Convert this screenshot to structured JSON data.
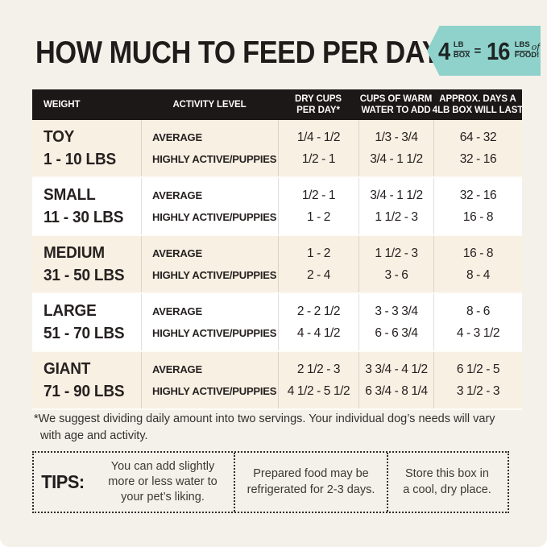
{
  "page": {
    "background": "#f4f1ea",
    "accent_teal": "#8ed2cb",
    "header_black": "#1c1817",
    "row_cream": "#f8f0e3"
  },
  "title": "HOW MUCH TO FEED PER DAY",
  "badge": {
    "qty_box": "4",
    "lb": "LB",
    "box": "BOX",
    "equals": "=",
    "qty_lbs": "16",
    "lbs": "LBS",
    "of": "of",
    "food": "FOOD!"
  },
  "table": {
    "headers": [
      {
        "line1": "WEIGHT"
      },
      {
        "line1": "ACTIVITY LEVEL"
      },
      {
        "line1": "DRY CUPS",
        "line2": "PER DAY*"
      },
      {
        "line1": "CUPS OF WARM",
        "line2": "WATER TO ADD"
      },
      {
        "line1": "APPROX. DAYS A",
        "line2": "4LB BOX WILL LAST"
      }
    ],
    "activity_labels": {
      "average": "AVERAGE",
      "active": "HIGHLY ACTIVE/PUPPIES"
    },
    "rows": [
      {
        "size": "TOY",
        "range": "1 - 10 LBS",
        "average": {
          "dry": "1/4 - 1/2",
          "water": "1/3 - 3/4",
          "days": "64 - 32"
        },
        "active": {
          "dry": "1/2 - 1",
          "water": "3/4 - 1 1/2",
          "days": "32 - 16"
        }
      },
      {
        "size": "SMALL",
        "range": "11 - 30 LBS",
        "average": {
          "dry": "1/2 - 1",
          "water": "3/4 - 1 1/2",
          "days": "32 - 16"
        },
        "active": {
          "dry": "1 - 2",
          "water": "1 1/2 - 3",
          "days": "16 - 8"
        }
      },
      {
        "size": "MEDIUM",
        "range": "31 - 50 LBS",
        "average": {
          "dry": "1 - 2",
          "water": "1 1/2 - 3",
          "days": "16 - 8"
        },
        "active": {
          "dry": "2 - 4",
          "water": "3 - 6",
          "days": "8 - 4"
        }
      },
      {
        "size": "LARGE",
        "range": "51 - 70 LBS",
        "average": {
          "dry": "2 - 2 1/2",
          "water": "3 - 3 3/4",
          "days": "8 - 6"
        },
        "active": {
          "dry": "4 - 4 1/2",
          "water": "6 - 6 3/4",
          "days": "4 - 3 1/2"
        }
      },
      {
        "size": "GIANT",
        "range": "71 - 90 LBS",
        "average": {
          "dry": "2 1/2 - 3",
          "water": "3 3/4 - 4 1/2",
          "days": "6 1/2 - 5"
        },
        "active": {
          "dry": "4 1/2 - 5 1/2",
          "water": "6 3/4 - 8 1/4",
          "days": "3 1/2 - 3"
        }
      }
    ]
  },
  "footnote": {
    "line1": "*We suggest dividing daily amount into two servings. Your individual dog’s needs will vary",
    "line2": "with age and activity."
  },
  "tips": {
    "label": "TIPS:",
    "items": [
      {
        "lines": [
          "You can add slightly",
          "more or less water to",
          "your pet’s liking."
        ]
      },
      {
        "lines": [
          "Prepared food may be",
          "refrigerated for 2-3 days."
        ]
      },
      {
        "lines": [
          "Store this box in",
          "a cool, dry place."
        ]
      }
    ]
  }
}
